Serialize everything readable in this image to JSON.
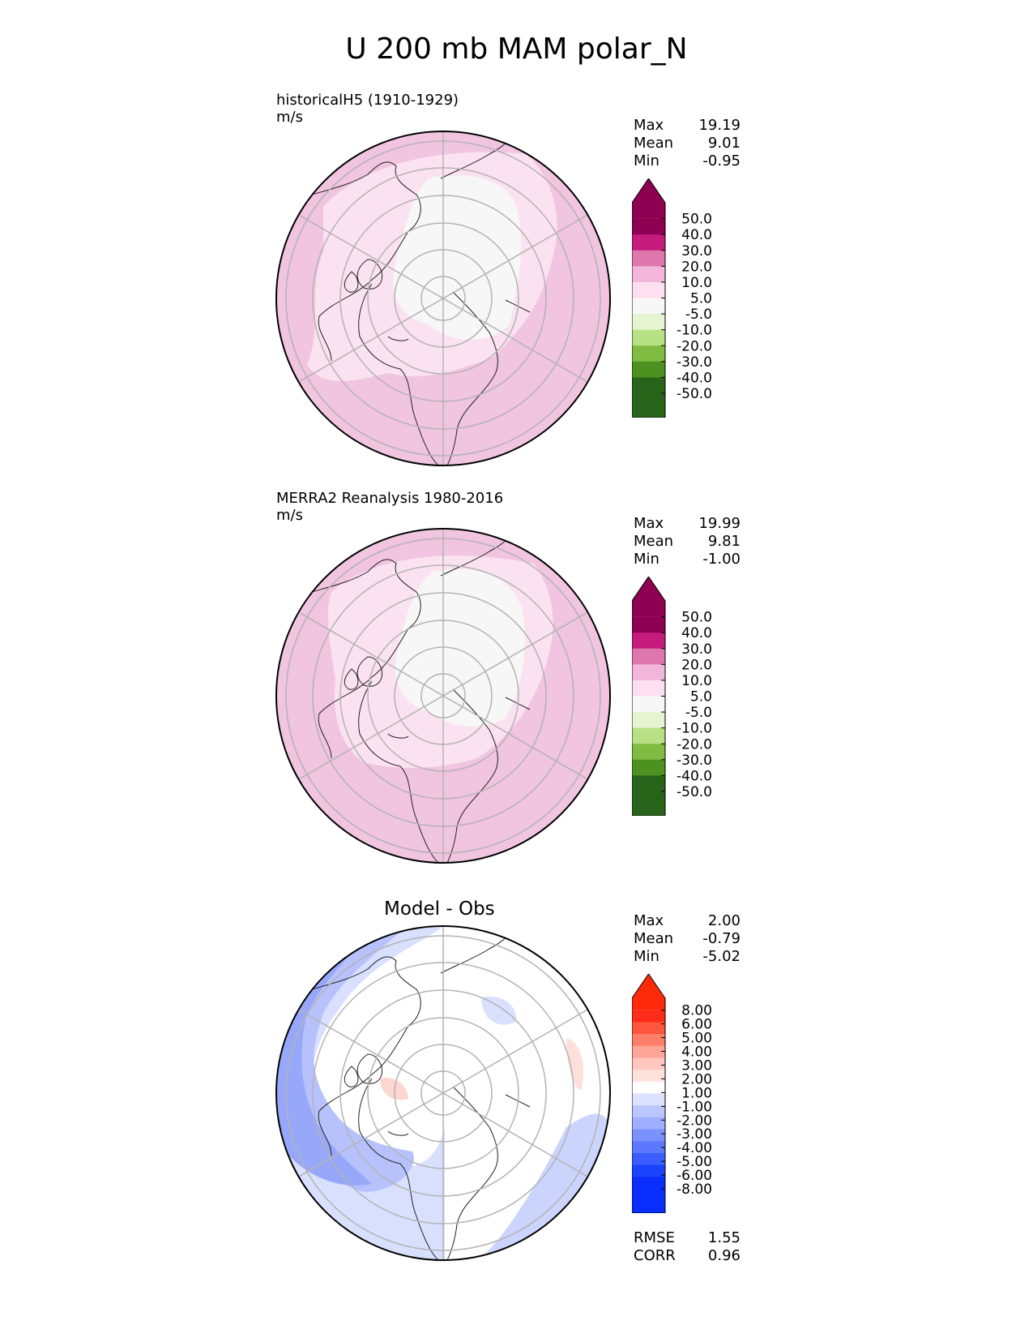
{
  "title": "U 200 mb MAM polar_N",
  "panels": [
    {
      "id": "test",
      "title": "historicalH5 (1910-1929)",
      "units": "m/s",
      "stats": [
        {
          "label": "Max",
          "value": "19.19"
        },
        {
          "label": "Mean",
          "value": "9.01"
        },
        {
          "label": "Min",
          "value": "-0.95"
        }
      ],
      "colorbar": {
        "ticks": [
          "50.0",
          "40.0",
          "30.0",
          "20.0",
          "10.0",
          "5.0",
          "-5.0",
          "-10.0",
          "-20.0",
          "-30.0",
          "-40.0",
          "-50.0"
        ],
        "colors": [
          "#8e0152",
          "#c51b7d",
          "#de77ae",
          "#f1b6da",
          "#fde0ef",
          "#f7f7f7",
          "#e6f5d0",
          "#b8e186",
          "#7fbc41",
          "#4d9221",
          "#276419"
        ],
        "extend_top": "#8e0152",
        "extend_bottom": "#276419"
      }
    },
    {
      "id": "ref",
      "title": "MERRA2 Reanalysis 1980-2016",
      "units": "m/s",
      "stats": [
        {
          "label": "Max",
          "value": "19.99"
        },
        {
          "label": "Mean",
          "value": "9.81"
        },
        {
          "label": "Min",
          "value": "-1.00"
        }
      ],
      "colorbar": {
        "ticks": [
          "50.0",
          "40.0",
          "30.0",
          "20.0",
          "10.0",
          "5.0",
          "-5.0",
          "-10.0",
          "-20.0",
          "-30.0",
          "-40.0",
          "-50.0"
        ],
        "colors": [
          "#8e0152",
          "#c51b7d",
          "#de77ae",
          "#f1b6da",
          "#fde0ef",
          "#f7f7f7",
          "#e6f5d0",
          "#b8e186",
          "#7fbc41",
          "#4d9221",
          "#276419"
        ],
        "extend_top": "#8e0152",
        "extend_bottom": "#276419"
      }
    },
    {
      "id": "diff",
      "title": "Model - Obs",
      "units": "",
      "stats": [
        {
          "label": "Max",
          "value": "2.00"
        },
        {
          "label": "Mean",
          "value": "-0.79"
        },
        {
          "label": "Min",
          "value": "-5.02"
        }
      ],
      "extra_stats": [
        {
          "label": "RMSE",
          "value": "1.55"
        },
        {
          "label": "CORR",
          "value": "0.96"
        }
      ],
      "colorbar": {
        "ticks": [
          "8.00",
          "6.00",
          "5.00",
          "4.00",
          "3.00",
          "2.00",
          "1.00",
          "-1.00",
          "-2.00",
          "-3.00",
          "-4.00",
          "-5.00",
          "-6.00",
          "-8.00"
        ],
        "colors": [
          "#fe2d1b",
          "#fe553d",
          "#fe7e6a",
          "#fea497",
          "#fec6bd",
          "#fde2dc",
          "#ffffff",
          "#dce1fe",
          "#bcc6fe",
          "#9faefe",
          "#7b91fe",
          "#5c78fe",
          "#3b5cfe",
          "#1a43fe",
          "#0a2efe"
        ],
        "extend_top": "#ff2a0a",
        "extend_bottom": "#0a2efe"
      }
    }
  ]
}
